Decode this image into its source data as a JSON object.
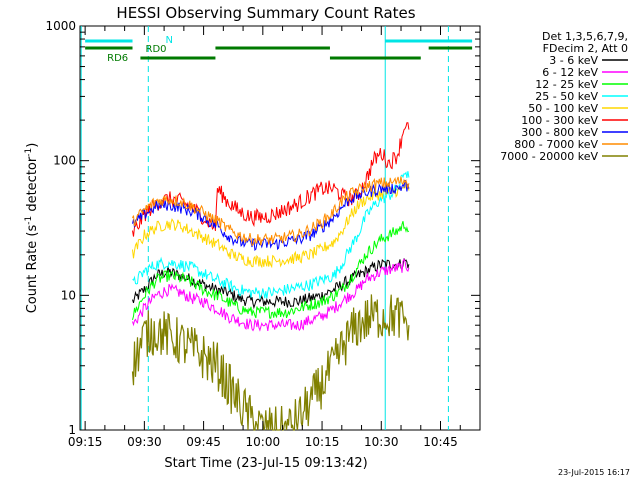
{
  "chart_data": {
    "type": "line",
    "title": "HESSI Observing Summary Count Rates",
    "xlabel": "Start Time (23-Jul-15 09:13:42)",
    "ylabel_main": "Count Rate (s",
    "ylabel_sup1": "-1",
    "ylabel_mid": " detector",
    "ylabel_sup2": "-1",
    "ylabel_end": ")",
    "yscale": "log",
    "ylim": [
      1,
      1000
    ],
    "xlim": [
      "09:13:42",
      "10:55:00"
    ],
    "x_ticks": [
      "09:15",
      "09:30",
      "09:45",
      "10:00",
      "10:15",
      "10:30",
      "10:45"
    ],
    "y_ticks": [
      "1",
      "10",
      "100",
      "1000"
    ],
    "legend_header": [
      "Det 1,3,5,6,7,9,",
      "FDecim 2, Att 0"
    ],
    "footer": "23-Jul-2015 16:17",
    "flags": {
      "N": "N",
      "RD0": "RD0",
      "RD6": "RD6",
      "n_segments": [
        [
          "09:15",
          "09:27"
        ],
        [
          "10:31",
          "10:53"
        ]
      ],
      "rd0_segments": [
        [
          "09:15",
          "09:27"
        ],
        [
          "09:48",
          "10:17"
        ],
        [
          "10:42",
          "10:53"
        ]
      ],
      "rd6_segments": [
        [
          "09:29",
          "09:48"
        ],
        [
          "10:17",
          "10:40"
        ]
      ],
      "colors": {
        "N": "#00e5e5",
        "RD": "#007a00"
      }
    },
    "vlines": {
      "solid": [
        "09:14",
        "10:31"
      ],
      "dashed": [
        "09:31",
        "10:47"
      ],
      "color": "#00e5e5"
    },
    "data_gaps": [
      [
        "09:14",
        "09:27"
      ],
      [
        "10:37",
        "10:55"
      ]
    ],
    "x": [
      "09:27",
      "09:30",
      "09:33",
      "09:36",
      "09:39",
      "09:42",
      "09:45",
      "09:48",
      "09:48.5",
      "09:51",
      "09:54",
      "09:57",
      "10:00",
      "10:03",
      "10:06",
      "10:09",
      "10:12",
      "10:15",
      "10:18",
      "10:20",
      "10:22",
      "10:24",
      "10:26",
      "10:28",
      "10:30",
      "10:32",
      "10:34",
      "10:35",
      "10:36",
      "10:37"
    ],
    "series": [
      {
        "name": "3 - 6 keV",
        "color": "#000000",
        "values": [
          9,
          11,
          14,
          15,
          14,
          13,
          12,
          11,
          11,
          10.5,
          9.5,
          9,
          9,
          9,
          9,
          9,
          9.5,
          10,
          11,
          12,
          13,
          14,
          15,
          16,
          17,
          17,
          17,
          17,
          18,
          17
        ]
      },
      {
        "name": "6 - 12 keV",
        "color": "#ff00ff",
        "values": [
          6,
          8,
          10,
          11,
          10.5,
          9.5,
          9,
          8,
          8,
          7,
          6.5,
          6,
          6,
          6,
          6,
          6,
          6.5,
          7,
          8,
          9,
          10,
          11,
          13,
          14,
          15,
          15.5,
          16,
          16,
          17,
          16
        ]
      },
      {
        "name": "12 - 25 keV",
        "color": "#00ff00",
        "values": [
          7,
          10,
          13,
          14,
          13.5,
          12.5,
          11,
          10,
          10,
          9,
          8,
          7.5,
          7.5,
          7.5,
          7.5,
          8,
          8.5,
          9,
          10,
          11,
          13,
          16,
          20,
          23,
          26,
          28,
          30,
          32,
          34,
          30
        ]
      },
      {
        "name": "25 - 50 keV",
        "color": "#00ffff",
        "values": [
          12,
          15,
          17,
          17.5,
          17,
          16,
          14.5,
          13,
          13,
          12,
          11,
          10.5,
          10.5,
          10.5,
          11,
          11.5,
          12,
          13,
          14,
          17,
          22,
          28,
          38,
          46,
          52,
          55,
          62,
          70,
          85,
          75
        ]
      },
      {
        "name": "50 - 100 keV",
        "color": "#ffd700",
        "values": [
          20,
          28,
          32,
          34,
          33,
          30,
          27,
          24,
          24,
          21,
          19,
          18,
          18,
          18,
          18.5,
          19,
          20,
          22,
          25,
          30,
          38,
          46,
          52,
          55,
          57,
          58,
          60,
          60,
          65,
          60
        ]
      },
      {
        "name": "100 - 300 keV",
        "color": "#ff0000",
        "values": [
          28,
          40,
          48,
          52,
          50,
          45,
          38,
          32,
          62,
          50,
          42,
          38,
          38,
          40,
          44,
          48,
          55,
          62,
          62,
          55,
          52,
          55,
          70,
          100,
          115,
          95,
          110,
          140,
          190,
          170
        ]
      },
      {
        "name": "300 - 800 keV",
        "color": "#0000ff",
        "values": [
          33,
          40,
          46,
          47,
          45,
          42,
          38,
          33,
          33,
          28,
          25,
          24,
          24,
          24,
          25,
          26,
          28,
          32,
          38,
          45,
          52,
          55,
          58,
          60,
          62,
          62,
          63,
          64,
          66,
          62
        ]
      },
      {
        "name": "800 - 7000 keV",
        "color": "#ff8c00",
        "values": [
          35,
          43,
          50,
          52,
          50,
          46,
          41,
          36,
          36,
          31,
          28,
          26,
          26,
          26,
          27,
          28,
          31,
          35,
          42,
          50,
          56,
          60,
          64,
          66,
          68,
          68,
          70,
          70,
          72,
          68
        ]
      },
      {
        "name": "7000 - 20000 keV",
        "color": "#808000",
        "values": [
          3,
          5,
          5.5,
          5,
          4.5,
          4,
          3.5,
          3,
          3,
          2.2,
          1.6,
          1.2,
          1,
          1,
          1,
          1.2,
          1.6,
          2.2,
          3,
          4,
          5,
          6,
          6.5,
          7,
          7,
          7,
          7,
          6.5,
          6.5,
          6
        ]
      }
    ]
  }
}
